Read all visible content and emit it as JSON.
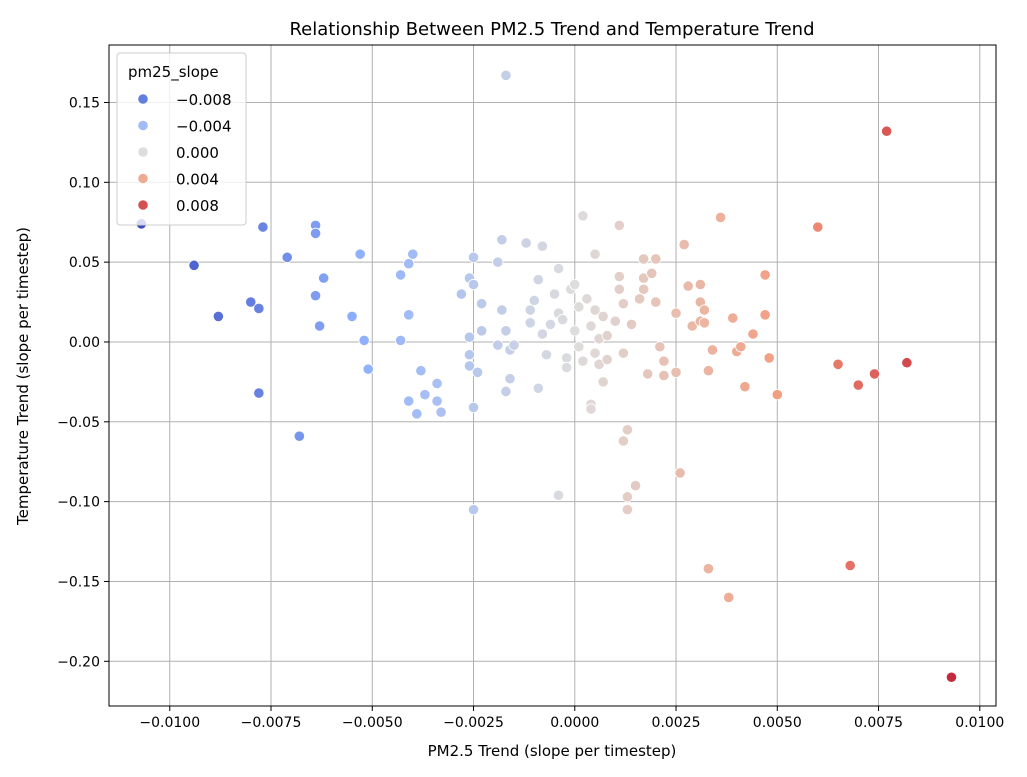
{
  "chart_data": {
    "type": "scatter",
    "title": "Relationship Between PM2.5 Trend and Temperature Trend",
    "xlabel": "PM2.5 Trend (slope per timestep)",
    "ylabel": "Temperature Trend (slope per timestep)",
    "xlim": [
      -0.0115,
      0.0104
    ],
    "ylim": [
      -0.228,
      0.186
    ],
    "xticks": [
      -0.01,
      -0.0075,
      -0.005,
      -0.0025,
      0.0,
      0.0025,
      0.005,
      0.0075,
      0.01
    ],
    "xtick_labels": [
      "−0.0100",
      "−0.0075",
      "−0.0050",
      "−0.0025",
      "0.0000",
      "0.0025",
      "0.0050",
      "0.0075",
      "0.0100"
    ],
    "yticks": [
      -0.2,
      -0.15,
      -0.1,
      -0.05,
      0.0,
      0.05,
      0.1,
      0.15
    ],
    "ytick_labels": [
      "−0.20",
      "−0.15",
      "−0.10",
      "−0.05",
      "0.00",
      "0.05",
      "0.10",
      "0.15"
    ],
    "grid": true,
    "color_by": "x",
    "colormap": "coolwarm",
    "color_range": [
      -0.0107,
      0.0107
    ],
    "legend": {
      "title": "pm25_slope",
      "placement": "top-left",
      "entries": [
        {
          "label": "−0.008",
          "value": -0.008
        },
        {
          "label": "−0.004",
          "value": -0.004
        },
        {
          "label": "0.000",
          "value": 0.0
        },
        {
          "label": "0.004",
          "value": 0.004
        },
        {
          "label": "0.008",
          "value": 0.008
        }
      ]
    },
    "points": [
      [
        -0.0107,
        0.074
      ],
      [
        -0.0094,
        0.048
      ],
      [
        -0.0088,
        0.016
      ],
      [
        -0.008,
        0.025
      ],
      [
        -0.0078,
        0.021
      ],
      [
        -0.0077,
        0.072
      ],
      [
        -0.0078,
        -0.032
      ],
      [
        -0.0071,
        0.053
      ],
      [
        -0.0068,
        -0.059
      ],
      [
        -0.0064,
        0.073
      ],
      [
        -0.0064,
        0.068
      ],
      [
        -0.0064,
        0.029
      ],
      [
        -0.0062,
        0.04
      ],
      [
        -0.0063,
        0.01
      ],
      [
        -0.0055,
        0.016
      ],
      [
        -0.0053,
        0.055
      ],
      [
        -0.0052,
        0.001
      ],
      [
        -0.0051,
        -0.017
      ],
      [
        -0.0043,
        0.042
      ],
      [
        -0.0041,
        0.049
      ],
      [
        -0.004,
        0.055
      ],
      [
        -0.0043,
        0.001
      ],
      [
        -0.0041,
        0.017
      ],
      [
        -0.0041,
        -0.037
      ],
      [
        -0.0039,
        -0.045
      ],
      [
        -0.0038,
        -0.018
      ],
      [
        -0.0037,
        -0.033
      ],
      [
        -0.0034,
        -0.026
      ],
      [
        -0.0034,
        -0.037
      ],
      [
        -0.0033,
        -0.044
      ],
      [
        -0.0028,
        0.03
      ],
      [
        -0.0026,
        0.04
      ],
      [
        -0.0025,
        0.036
      ],
      [
        -0.0025,
        0.053
      ],
      [
        -0.0026,
        0.003
      ],
      [
        -0.0026,
        -0.008
      ],
      [
        -0.0026,
        -0.015
      ],
      [
        -0.0025,
        -0.041
      ],
      [
        -0.0025,
        -0.105
      ],
      [
        -0.0024,
        -0.019
      ],
      [
        -0.0023,
        0.007
      ],
      [
        -0.0023,
        0.024
      ],
      [
        -0.0019,
        0.05
      ],
      [
        -0.0019,
        -0.002
      ],
      [
        -0.0018,
        0.064
      ],
      [
        -0.0018,
        0.02
      ],
      [
        -0.0017,
        0.007
      ],
      [
        -0.0017,
        -0.031
      ],
      [
        -0.0016,
        -0.005
      ],
      [
        -0.0016,
        -0.023
      ],
      [
        -0.0015,
        -0.002
      ],
      [
        -0.0017,
        0.167
      ],
      [
        -0.0012,
        0.062
      ],
      [
        -0.0008,
        0.06
      ],
      [
        -0.001,
        0.026
      ],
      [
        -0.0009,
        0.039
      ],
      [
        -0.0011,
        0.02
      ],
      [
        -0.0011,
        0.012
      ],
      [
        -0.0009,
        -0.029
      ],
      [
        -0.0007,
        -0.008
      ],
      [
        -0.0008,
        0.005
      ],
      [
        -0.0006,
        0.011
      ],
      [
        -0.0005,
        0.03
      ],
      [
        -0.0004,
        0.046
      ],
      [
        -0.0004,
        0.018
      ],
      [
        -0.0003,
        0.014
      ],
      [
        -0.0002,
        -0.01
      ],
      [
        -0.0002,
        -0.016
      ],
      [
        -0.0004,
        -0.096
      ],
      [
        -0.0001,
        0.033
      ],
      [
        0.0,
        0.036
      ],
      [
        0.0001,
        0.022
      ],
      [
        0.0,
        0.007
      ],
      [
        0.0001,
        -0.003
      ],
      [
        0.0002,
        -0.012
      ],
      [
        0.0003,
        0.027
      ],
      [
        0.0002,
        0.079
      ],
      [
        0.0004,
        0.01
      ],
      [
        0.0005,
        0.055
      ],
      [
        0.0005,
        0.02
      ],
      [
        0.0005,
        -0.007
      ],
      [
        0.0006,
        0.002
      ],
      [
        0.0006,
        -0.014
      ],
      [
        0.0004,
        -0.039
      ],
      [
        0.0004,
        -0.042
      ],
      [
        0.0007,
        0.016
      ],
      [
        0.0008,
        0.004
      ],
      [
        0.0008,
        -0.011
      ],
      [
        0.0007,
        -0.025
      ],
      [
        0.001,
        0.013
      ],
      [
        0.0011,
        0.073
      ],
      [
        0.0011,
        0.041
      ],
      [
        0.0011,
        0.033
      ],
      [
        0.0012,
        0.024
      ],
      [
        0.0012,
        -0.007
      ],
      [
        0.0012,
        -0.062
      ],
      [
        0.0013,
        -0.055
      ],
      [
        0.0013,
        -0.097
      ],
      [
        0.0013,
        -0.105
      ],
      [
        0.0014,
        0.011
      ],
      [
        0.0015,
        -0.09
      ],
      [
        0.0016,
        0.027
      ],
      [
        0.0017,
        0.052
      ],
      [
        0.0017,
        0.04
      ],
      [
        0.0017,
        0.033
      ],
      [
        0.0018,
        -0.02
      ],
      [
        0.0019,
        0.043
      ],
      [
        0.002,
        0.052
      ],
      [
        0.002,
        0.025
      ],
      [
        0.0021,
        -0.003
      ],
      [
        0.0022,
        -0.012
      ],
      [
        0.0022,
        -0.021
      ],
      [
        0.0025,
        0.018
      ],
      [
        0.0025,
        -0.019
      ],
      [
        0.0026,
        -0.082
      ],
      [
        0.0027,
        0.061
      ],
      [
        0.0028,
        0.035
      ],
      [
        0.0029,
        0.01
      ],
      [
        0.0031,
        0.036
      ],
      [
        0.0031,
        0.025
      ],
      [
        0.0031,
        0.013
      ],
      [
        0.0032,
        0.02
      ],
      [
        0.0032,
        0.012
      ],
      [
        0.0033,
        -0.018
      ],
      [
        0.0034,
        -0.005
      ],
      [
        0.0033,
        -0.142
      ],
      [
        0.0036,
        0.078
      ],
      [
        0.0038,
        -0.16
      ],
      [
        0.0039,
        0.015
      ],
      [
        0.004,
        -0.006
      ],
      [
        0.0041,
        -0.003
      ],
      [
        0.0042,
        -0.028
      ],
      [
        0.0044,
        0.005
      ],
      [
        0.0047,
        0.042
      ],
      [
        0.0047,
        0.017
      ],
      [
        0.0048,
        -0.01
      ],
      [
        0.005,
        -0.033
      ],
      [
        0.006,
        0.072
      ],
      [
        0.0065,
        -0.014
      ],
      [
        0.0068,
        -0.14
      ],
      [
        0.007,
        -0.027
      ],
      [
        0.0074,
        -0.02
      ],
      [
        0.0077,
        0.132
      ],
      [
        0.0082,
        -0.013
      ],
      [
        0.0093,
        -0.21
      ]
    ]
  }
}
